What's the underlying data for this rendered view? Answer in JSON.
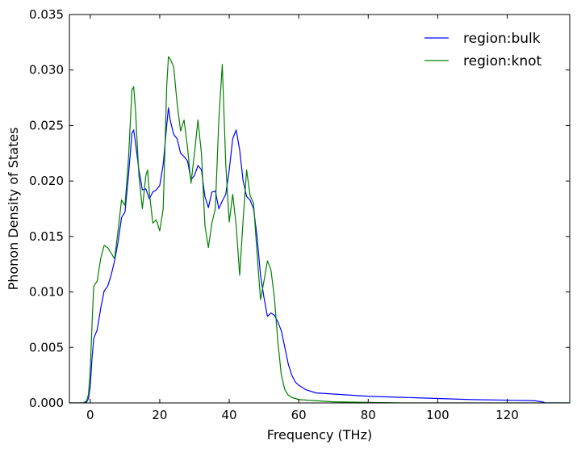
{
  "chart_data": {
    "type": "line",
    "title": "",
    "xlabel": "Frequency (THz)",
    "ylabel": "Phonon Density of States",
    "xlim": [
      -6,
      138
    ],
    "ylim": [
      0,
      0.035
    ],
    "xticks": [
      0,
      20,
      40,
      60,
      80,
      100,
      120
    ],
    "xtick_labels": [
      "0",
      "20",
      "40",
      "60",
      "80",
      "100",
      "120"
    ],
    "yticks": [
      0.0,
      0.005,
      0.01,
      0.015,
      0.02,
      0.025,
      0.03,
      0.035
    ],
    "ytick_labels": [
      "0.000",
      "0.005",
      "0.010",
      "0.015",
      "0.020",
      "0.025",
      "0.030",
      "0.035"
    ],
    "grid": false,
    "legend_position": "top-right",
    "series": [
      {
        "name": "region:bulk",
        "color": "#0000ff",
        "points": [
          [
            -6,
            0.0
          ],
          [
            -2,
            0.0
          ],
          [
            -1,
            0.0001
          ],
          [
            -0.5,
            0.0004
          ],
          [
            0,
            0.0015
          ],
          [
            0.5,
            0.004
          ],
          [
            1,
            0.0058
          ],
          [
            2,
            0.0066
          ],
          [
            3,
            0.0085
          ],
          [
            4,
            0.0101
          ],
          [
            5,
            0.0105
          ],
          [
            6,
            0.0115
          ],
          [
            7,
            0.0128
          ],
          [
            8,
            0.0145
          ],
          [
            9,
            0.0167
          ],
          [
            10,
            0.0172
          ],
          [
            11,
            0.0205
          ],
          [
            12,
            0.0243
          ],
          [
            12.5,
            0.0246
          ],
          [
            13,
            0.0235
          ],
          [
            14,
            0.021
          ],
          [
            15,
            0.0192
          ],
          [
            16,
            0.0193
          ],
          [
            17,
            0.0184
          ],
          [
            18,
            0.019
          ],
          [
            19,
            0.0192
          ],
          [
            20,
            0.0196
          ],
          [
            21,
            0.0215
          ],
          [
            22,
            0.025
          ],
          [
            22.5,
            0.0266
          ],
          [
            23,
            0.0255
          ],
          [
            24,
            0.0242
          ],
          [
            25,
            0.0238
          ],
          [
            26,
            0.0225
          ],
          [
            27,
            0.0222
          ],
          [
            28,
            0.0218
          ],
          [
            29,
            0.0201
          ],
          [
            30,
            0.0205
          ],
          [
            31,
            0.0214
          ],
          [
            32,
            0.021
          ],
          [
            33,
            0.0186
          ],
          [
            34,
            0.0176
          ],
          [
            35,
            0.019
          ],
          [
            36,
            0.0191
          ],
          [
            37,
            0.0175
          ],
          [
            38,
            0.0182
          ],
          [
            39,
            0.0188
          ],
          [
            40,
            0.021
          ],
          [
            41,
            0.0238
          ],
          [
            42,
            0.0246
          ],
          [
            43,
            0.0228
          ],
          [
            44,
            0.02
          ],
          [
            45,
            0.0186
          ],
          [
            46,
            0.0183
          ],
          [
            47,
            0.0175
          ],
          [
            48,
            0.015
          ],
          [
            49,
            0.0115
          ],
          [
            50,
            0.0095
          ],
          [
            51,
            0.0078
          ],
          [
            52,
            0.0081
          ],
          [
            53,
            0.0079
          ],
          [
            54,
            0.0073
          ],
          [
            55,
            0.0065
          ],
          [
            56,
            0.005
          ],
          [
            57,
            0.0035
          ],
          [
            58,
            0.0025
          ],
          [
            59,
            0.0019
          ],
          [
            60,
            0.0016
          ],
          [
            62,
            0.0012
          ],
          [
            65,
            0.0009
          ],
          [
            70,
            0.0008
          ],
          [
            80,
            0.0006
          ],
          [
            90,
            0.0005
          ],
          [
            100,
            0.0004
          ],
          [
            110,
            0.0003
          ],
          [
            120,
            0.00025
          ],
          [
            128,
            0.0002
          ],
          [
            130,
            0.0001
          ],
          [
            131,
            0.0
          ],
          [
            138,
            0.0
          ]
        ]
      },
      {
        "name": "region:knot",
        "color": "#008000",
        "points": [
          [
            -6,
            0.0
          ],
          [
            -2,
            0.0
          ],
          [
            -1,
            0.0002
          ],
          [
            -0.5,
            0.0008
          ],
          [
            0,
            0.003
          ],
          [
            0.5,
            0.007
          ],
          [
            1,
            0.0105
          ],
          [
            2,
            0.011
          ],
          [
            3,
            0.013
          ],
          [
            4,
            0.0142
          ],
          [
            5,
            0.014
          ],
          [
            6,
            0.0135
          ],
          [
            7,
            0.013
          ],
          [
            8,
            0.0155
          ],
          [
            9,
            0.0183
          ],
          [
            10,
            0.0178
          ],
          [
            11,
            0.022
          ],
          [
            12,
            0.0282
          ],
          [
            12.5,
            0.0285
          ],
          [
            13,
            0.0265
          ],
          [
            14,
            0.0205
          ],
          [
            15,
            0.0175
          ],
          [
            16,
            0.0205
          ],
          [
            16.5,
            0.021
          ],
          [
            17,
            0.019
          ],
          [
            18,
            0.0162
          ],
          [
            19,
            0.0165
          ],
          [
            20,
            0.0155
          ],
          [
            21,
            0.0175
          ],
          [
            22,
            0.0285
          ],
          [
            22.5,
            0.0312
          ],
          [
            23,
            0.031
          ],
          [
            24,
            0.0303
          ],
          [
            25,
            0.027
          ],
          [
            26,
            0.0245
          ],
          [
            27,
            0.0255
          ],
          [
            28,
            0.023
          ],
          [
            29,
            0.0198
          ],
          [
            30,
            0.0225
          ],
          [
            31,
            0.0255
          ],
          [
            32,
            0.0225
          ],
          [
            33,
            0.016
          ],
          [
            34,
            0.014
          ],
          [
            35,
            0.0162
          ],
          [
            36,
            0.0175
          ],
          [
            37,
            0.0255
          ],
          [
            38,
            0.0305
          ],
          [
            39,
            0.0215
          ],
          [
            40,
            0.0163
          ],
          [
            41,
            0.0188
          ],
          [
            42,
            0.016
          ],
          [
            43,
            0.0115
          ],
          [
            44,
            0.0165
          ],
          [
            45,
            0.021
          ],
          [
            46,
            0.0187
          ],
          [
            47,
            0.018
          ],
          [
            48,
            0.0135
          ],
          [
            49,
            0.0093
          ],
          [
            50,
            0.011
          ],
          [
            51,
            0.0128
          ],
          [
            52,
            0.012
          ],
          [
            53,
            0.0095
          ],
          [
            54,
            0.0055
          ],
          [
            55,
            0.0025
          ],
          [
            56,
            0.0012
          ],
          [
            57,
            0.0007
          ],
          [
            58,
            0.0005
          ],
          [
            60,
            0.0003
          ],
          [
            65,
            0.0002
          ],
          [
            70,
            0.0001
          ],
          [
            80,
            5e-05
          ],
          [
            90,
            0.0
          ],
          [
            138,
            0.0
          ]
        ]
      }
    ]
  }
}
